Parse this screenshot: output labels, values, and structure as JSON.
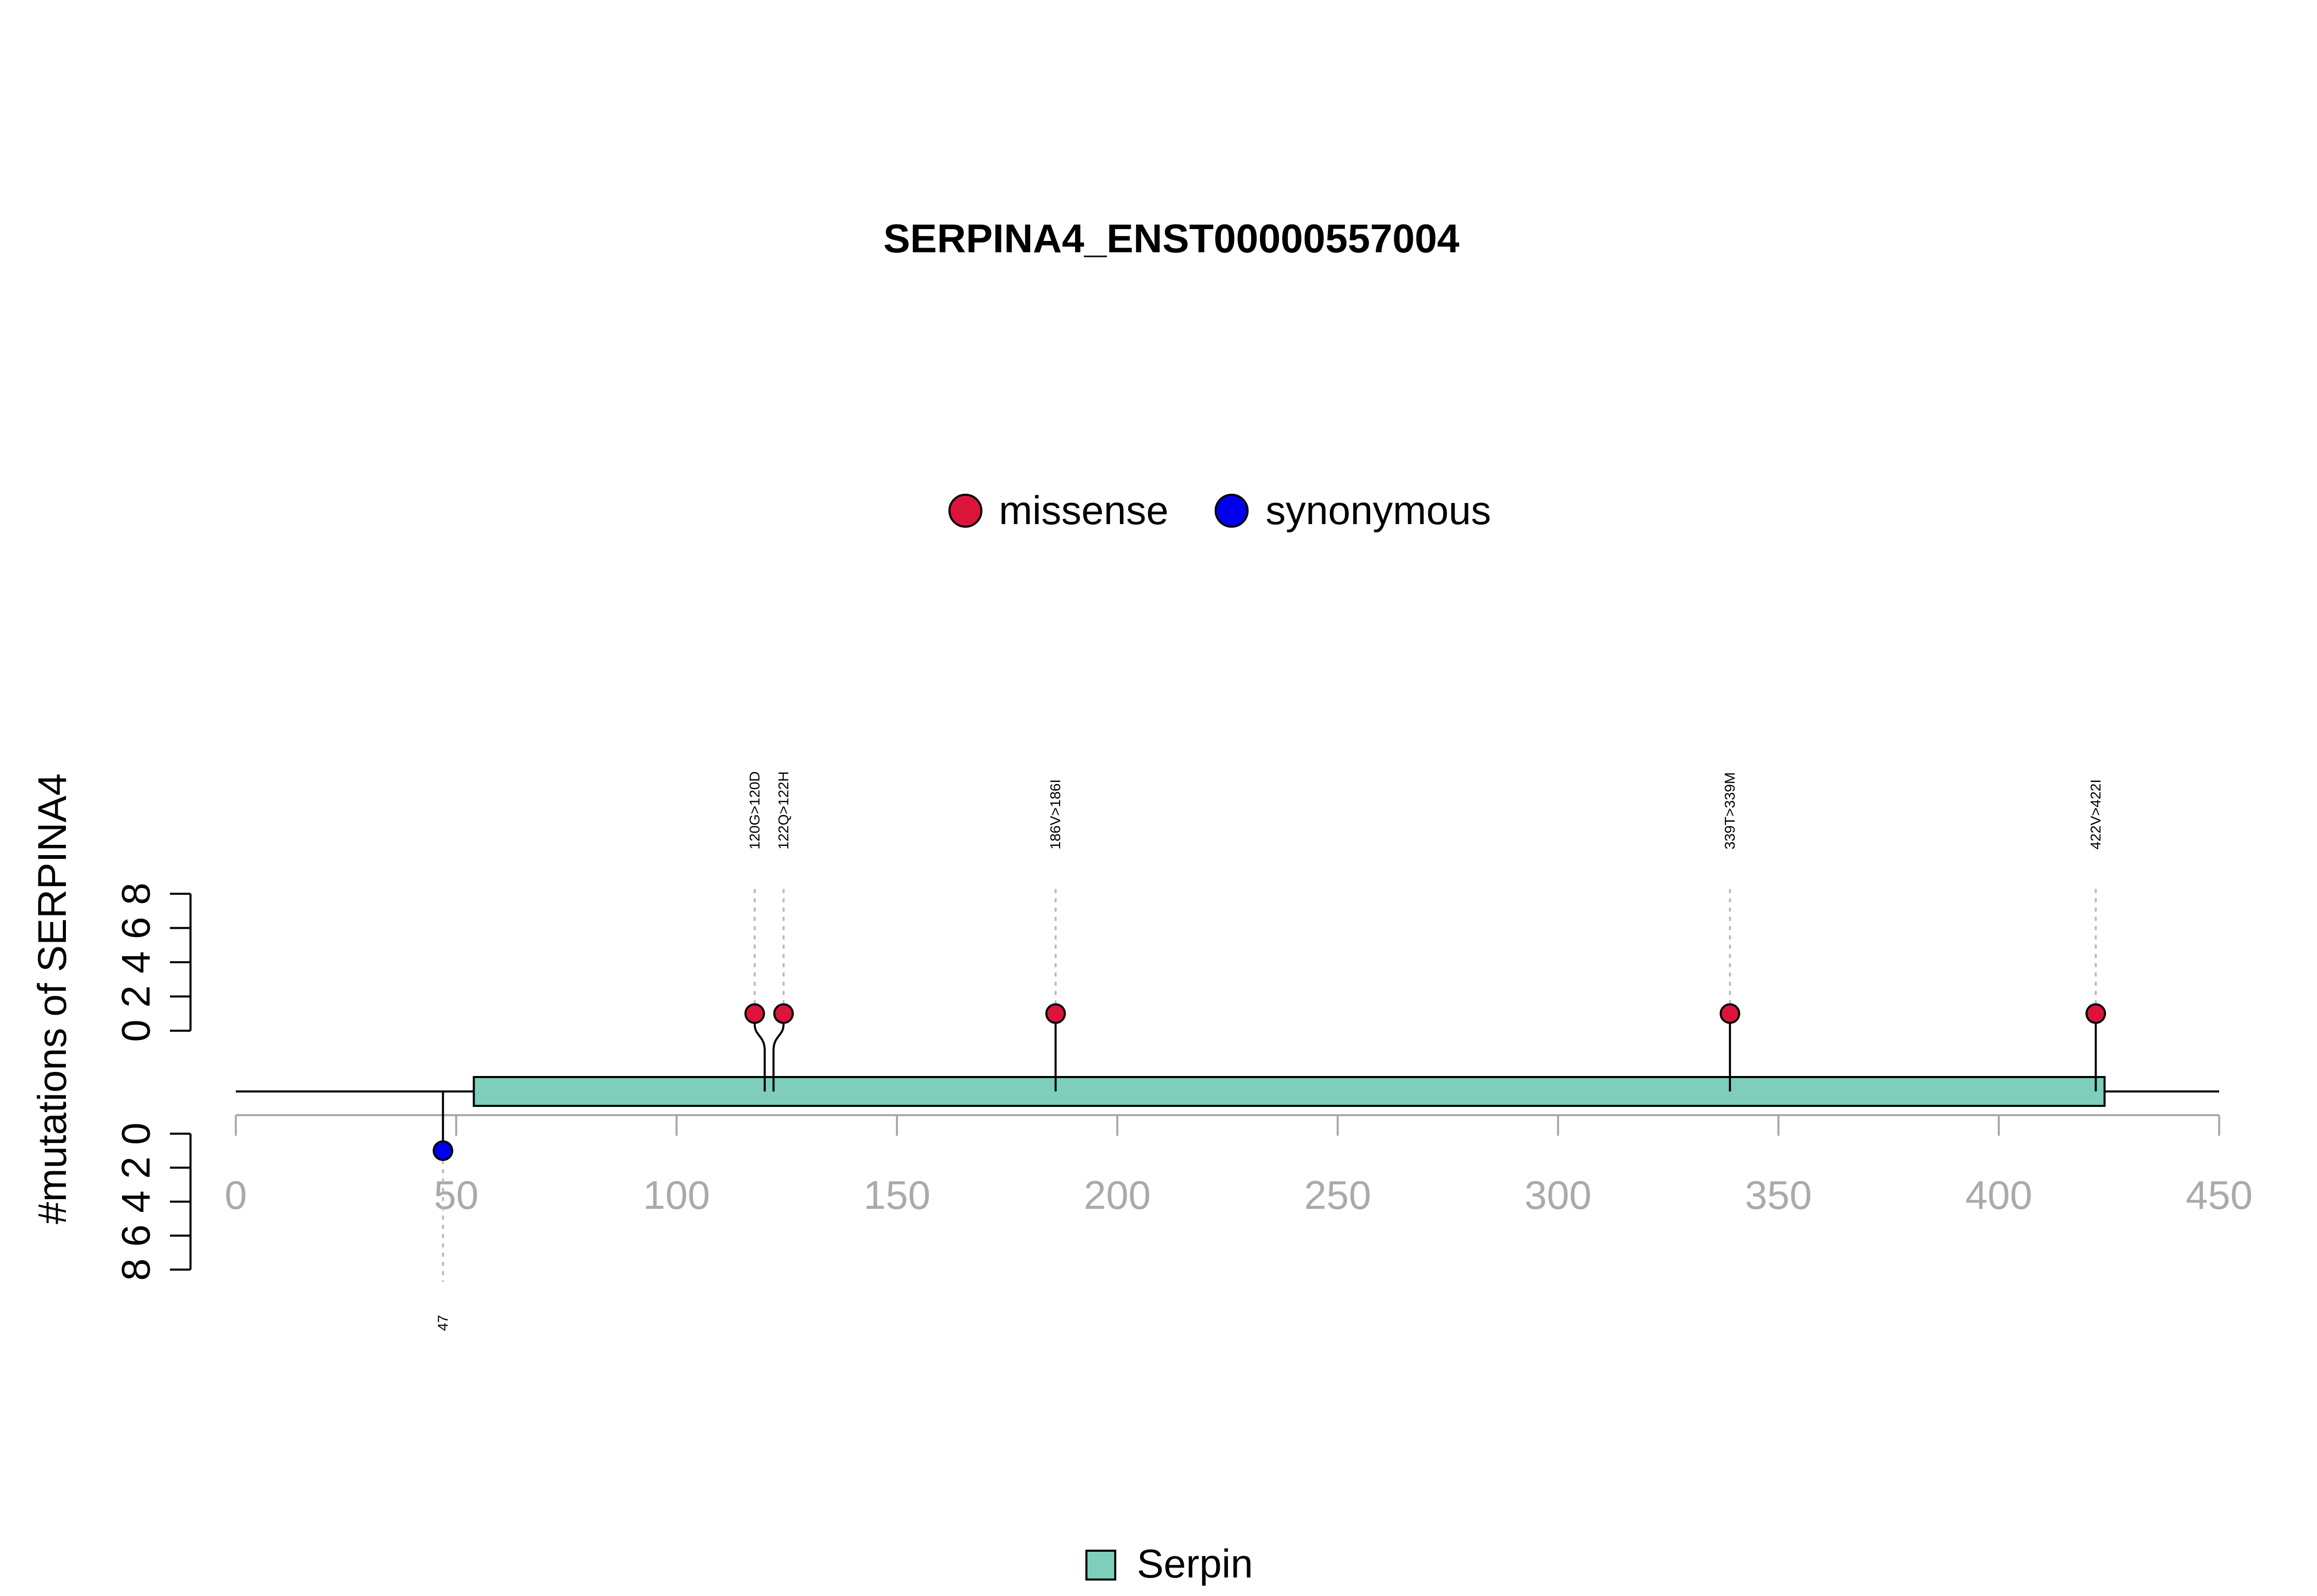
{
  "chart_data": {
    "type": "lollipop",
    "title": "SERPINA4_ENST00000557004",
    "ylabel": "#mutations of SERPINA4",
    "xlim": [
      0,
      450
    ],
    "x_ticks": [
      0,
      50,
      100,
      150,
      200,
      250,
      300,
      350,
      400,
      450
    ],
    "x_tick_labels": [
      "0",
      "50",
      "100",
      "150",
      "200",
      "250",
      "300",
      "350",
      "400",
      "450"
    ],
    "ylim": [
      0,
      8
    ],
    "y_ticks_top": [
      0,
      2,
      4,
      6,
      8
    ],
    "y_tick_labels_top": [
      "0",
      "2",
      "4",
      "6",
      "8"
    ],
    "y_ticks_bottom": [
      0,
      2,
      4,
      6,
      8
    ],
    "y_tick_labels_bottom": [
      "0",
      "2",
      "4",
      "6",
      "8"
    ],
    "protein_length": 450,
    "legend": [
      {
        "name": "missense",
        "color": "#DC143C"
      },
      {
        "name": "synonymous",
        "color": "#0000EE"
      }
    ],
    "domains": [
      {
        "name": "Serpin",
        "start": 54,
        "end": 424,
        "color": "#7FCDBB"
      }
    ],
    "mutations_top": [
      {
        "position": 120,
        "count": 1,
        "label": "120G>120D",
        "type": "missense"
      },
      {
        "position": 122,
        "count": 1,
        "label": "122Q>122H",
        "type": "missense"
      },
      {
        "position": 186,
        "count": 1,
        "label": "186V>186I",
        "type": "missense"
      },
      {
        "position": 339,
        "count": 1,
        "label": "339T>339M",
        "type": "missense"
      },
      {
        "position": 422,
        "count": 1,
        "label": "422V>422I",
        "type": "missense"
      }
    ],
    "mutations_bottom": [
      {
        "position": 47,
        "count": 1,
        "label": "47",
        "type": "synonymous"
      }
    ]
  }
}
